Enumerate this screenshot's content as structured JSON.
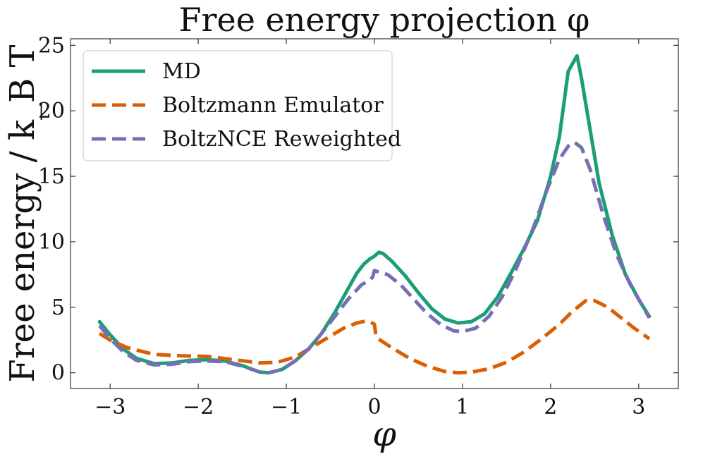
{
  "chart_data": {
    "type": "line",
    "title": "Free energy projection φ",
    "xlabel": "φ",
    "ylabel": "Free energy / k_B T",
    "xlim": [
      -3.45,
      3.45
    ],
    "ylim": [
      -1.2,
      25.5
    ],
    "xticks": [
      -3,
      -2,
      -1,
      0,
      1,
      2,
      3
    ],
    "xtick_labels": [
      "−3",
      "−2",
      "−1",
      "0",
      "1",
      "2",
      "3"
    ],
    "yticks": [
      0,
      5,
      10,
      15,
      20,
      25
    ],
    "ytick_labels": [
      "0",
      "5",
      "10",
      "15",
      "20",
      "25"
    ],
    "grid": false,
    "legend_position": "top-left",
    "series": [
      {
        "name": "MD",
        "color": "#1b9e77",
        "dash": "solid",
        "points": [
          [
            -3.12,
            3.9
          ],
          [
            -3.0,
            2.9
          ],
          [
            -2.85,
            1.8
          ],
          [
            -2.7,
            1.1
          ],
          [
            -2.5,
            0.7
          ],
          [
            -2.3,
            0.75
          ],
          [
            -2.1,
            0.95
          ],
          [
            -1.9,
            1.0
          ],
          [
            -1.7,
            0.9
          ],
          [
            -1.5,
            0.55
          ],
          [
            -1.3,
            0.05
          ],
          [
            -1.2,
            0.0
          ],
          [
            -1.05,
            0.25
          ],
          [
            -0.9,
            0.9
          ],
          [
            -0.75,
            1.8
          ],
          [
            -0.6,
            3.0
          ],
          [
            -0.45,
            4.6
          ],
          [
            -0.3,
            6.4
          ],
          [
            -0.2,
            7.6
          ],
          [
            -0.12,
            8.3
          ],
          [
            -0.05,
            8.7
          ],
          [
            0.0,
            8.9
          ],
          [
            0.05,
            9.2
          ],
          [
            0.1,
            9.1
          ],
          [
            0.2,
            8.5
          ],
          [
            0.35,
            7.4
          ],
          [
            0.5,
            6.1
          ],
          [
            0.65,
            4.9
          ],
          [
            0.8,
            4.1
          ],
          [
            0.95,
            3.8
          ],
          [
            1.1,
            3.9
          ],
          [
            1.25,
            4.5
          ],
          [
            1.4,
            5.8
          ],
          [
            1.55,
            7.6
          ],
          [
            1.7,
            9.5
          ],
          [
            1.85,
            11.6
          ],
          [
            2.0,
            15.0
          ],
          [
            2.1,
            18.0
          ],
          [
            2.2,
            23.0
          ],
          [
            2.3,
            24.2
          ],
          [
            2.35,
            22.5
          ],
          [
            2.45,
            18.5
          ],
          [
            2.55,
            14.5
          ],
          [
            2.7,
            10.5
          ],
          [
            2.85,
            7.5
          ],
          [
            3.0,
            5.6
          ],
          [
            3.12,
            4.3
          ]
        ]
      },
      {
        "name": "Boltzmann Emulator",
        "color": "#d95f02",
        "dash": "dashed",
        "points": [
          [
            -3.12,
            3.0
          ],
          [
            -3.0,
            2.5
          ],
          [
            -2.8,
            1.9
          ],
          [
            -2.5,
            1.4
          ],
          [
            -2.2,
            1.3
          ],
          [
            -1.9,
            1.25
          ],
          [
            -1.6,
            1.0
          ],
          [
            -1.3,
            0.75
          ],
          [
            -1.1,
            0.8
          ],
          [
            -0.9,
            1.2
          ],
          [
            -0.7,
            2.0
          ],
          [
            -0.5,
            2.8
          ],
          [
            -0.35,
            3.4
          ],
          [
            -0.2,
            3.8
          ],
          [
            -0.1,
            3.95
          ],
          [
            -0.05,
            3.9
          ],
          [
            0.0,
            3.7
          ],
          [
            0.02,
            2.7
          ],
          [
            0.2,
            1.9
          ],
          [
            0.4,
            1.1
          ],
          [
            0.6,
            0.5
          ],
          [
            0.8,
            0.1
          ],
          [
            0.95,
            0.0
          ],
          [
            1.1,
            0.05
          ],
          [
            1.3,
            0.3
          ],
          [
            1.5,
            0.8
          ],
          [
            1.7,
            1.6
          ],
          [
            1.9,
            2.6
          ],
          [
            2.1,
            3.7
          ],
          [
            2.25,
            4.7
          ],
          [
            2.4,
            5.5
          ],
          [
            2.5,
            5.5
          ],
          [
            2.65,
            5.0
          ],
          [
            2.8,
            4.2
          ],
          [
            2.95,
            3.4
          ],
          [
            3.12,
            2.6
          ]
        ]
      },
      {
        "name": "BoltzNCE Reweighted",
        "color": "#7570b3",
        "dash": "dashed",
        "points": [
          [
            -3.12,
            3.6
          ],
          [
            -3.0,
            2.6
          ],
          [
            -2.85,
            1.6
          ],
          [
            -2.7,
            0.95
          ],
          [
            -2.5,
            0.6
          ],
          [
            -2.3,
            0.65
          ],
          [
            -2.1,
            0.85
          ],
          [
            -1.9,
            0.9
          ],
          [
            -1.7,
            0.85
          ],
          [
            -1.5,
            0.5
          ],
          [
            -1.3,
            0.05
          ],
          [
            -1.2,
            0.0
          ],
          [
            -1.05,
            0.25
          ],
          [
            -0.9,
            0.9
          ],
          [
            -0.75,
            1.8
          ],
          [
            -0.6,
            3.0
          ],
          [
            -0.45,
            4.3
          ],
          [
            -0.3,
            5.6
          ],
          [
            -0.15,
            6.7
          ],
          [
            -0.05,
            7.1
          ],
          [
            -0.02,
            7.3
          ],
          [
            0.0,
            7.8
          ],
          [
            0.15,
            7.5
          ],
          [
            0.3,
            6.7
          ],
          [
            0.45,
            5.6
          ],
          [
            0.6,
            4.5
          ],
          [
            0.75,
            3.7
          ],
          [
            0.9,
            3.2
          ],
          [
            1.0,
            3.15
          ],
          [
            1.15,
            3.4
          ],
          [
            1.3,
            4.3
          ],
          [
            1.45,
            5.8
          ],
          [
            1.6,
            7.8
          ],
          [
            1.8,
            11.0
          ],
          [
            1.95,
            13.8
          ],
          [
            2.1,
            16.3
          ],
          [
            2.2,
            17.3
          ],
          [
            2.27,
            17.6
          ],
          [
            2.35,
            17.2
          ],
          [
            2.45,
            15.5
          ],
          [
            2.6,
            12.0
          ],
          [
            2.75,
            9.0
          ],
          [
            2.9,
            6.8
          ],
          [
            3.12,
            4.2
          ]
        ]
      }
    ]
  }
}
